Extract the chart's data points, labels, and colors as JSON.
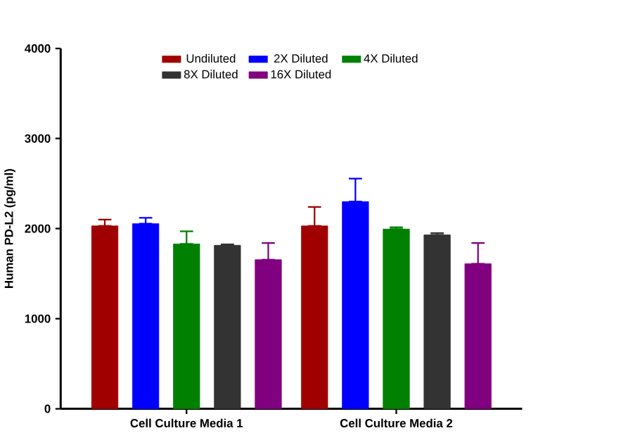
{
  "chart_data": {
    "type": "bar",
    "ylabel": "Human PD-L2 (pg/ml)",
    "categories": [
      "Cell Culture Media 1",
      "Cell Culture Media 2"
    ],
    "series": [
      {
        "name": "Undiluted",
        "color": "#a00000",
        "values": [
          2030,
          2030
        ],
        "errors": [
          [
            2030,
            2100
          ],
          [
            2030,
            2240
          ]
        ]
      },
      {
        "name": "2X Diluted",
        "color": "#0000ff",
        "values": [
          2055,
          2300
        ],
        "errors": [
          [
            2055,
            2120
          ],
          [
            2300,
            2555
          ]
        ]
      },
      {
        "name": "4X Diluted",
        "color": "#008000",
        "values": [
          1830,
          1995
        ],
        "errors": [
          [
            1830,
            1970
          ],
          [
            1995,
            2015
          ]
        ]
      },
      {
        "name": "8X Diluted",
        "color": "#333333",
        "values": [
          1815,
          1930
        ],
        "errors": [
          [
            1815,
            1825
          ],
          [
            1930,
            1950
          ]
        ]
      },
      {
        "name": "16X Diluted",
        "color": "#800080",
        "values": [
          1655,
          1610
        ],
        "errors": [
          [
            1655,
            1840
          ],
          [
            1610,
            1840
          ]
        ]
      }
    ],
    "ylim": [
      0,
      4000
    ],
    "yticks": [
      0,
      1000,
      2000,
      3000,
      4000
    ],
    "legend": "top",
    "grid": false
  }
}
